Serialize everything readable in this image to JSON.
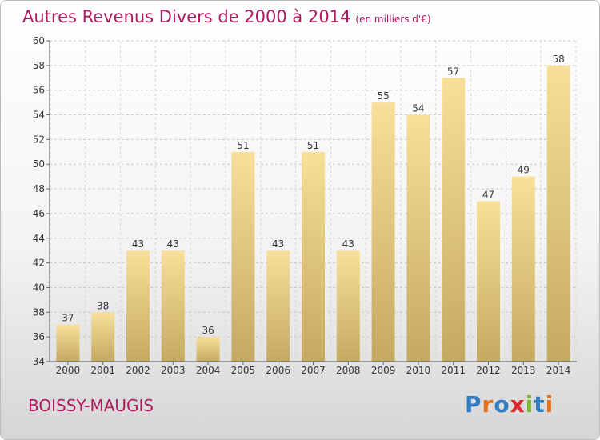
{
  "header": {
    "title": "Autres Revenus Divers de 2000 à 2014",
    "unit": "(en milliers d'€)"
  },
  "footer": {
    "commune": "BOISSY-MAUGIS",
    "logo_text": "Proxiti",
    "logo_colors": [
      "#2e7dc1",
      "#e8711a",
      "#2e7dc1",
      "#d92b2b",
      "#7cb82f",
      "#2e7dc1",
      "#e8711a"
    ]
  },
  "colors": {
    "title": "#b0195f",
    "bar_light": "#f8e09a",
    "bar_dark": "#c4a961"
  },
  "chart_data": {
    "type": "bar",
    "title": "Autres Revenus Divers de 2000 à 2014",
    "xlabel": "",
    "ylabel": "",
    "categories": [
      "2000",
      "2001",
      "2002",
      "2003",
      "2004",
      "2005",
      "2006",
      "2007",
      "2008",
      "2009",
      "2010",
      "2011",
      "2012",
      "2013",
      "2014"
    ],
    "values": [
      37,
      38,
      43,
      43,
      36,
      51,
      43,
      51,
      43,
      55,
      54,
      57,
      47,
      49,
      58
    ],
    "ylim": [
      34,
      60
    ],
    "yticks": [
      34,
      36,
      38,
      40,
      42,
      44,
      46,
      48,
      50,
      52,
      54,
      56,
      58,
      60
    ],
    "grid": "horizontal dashed"
  }
}
